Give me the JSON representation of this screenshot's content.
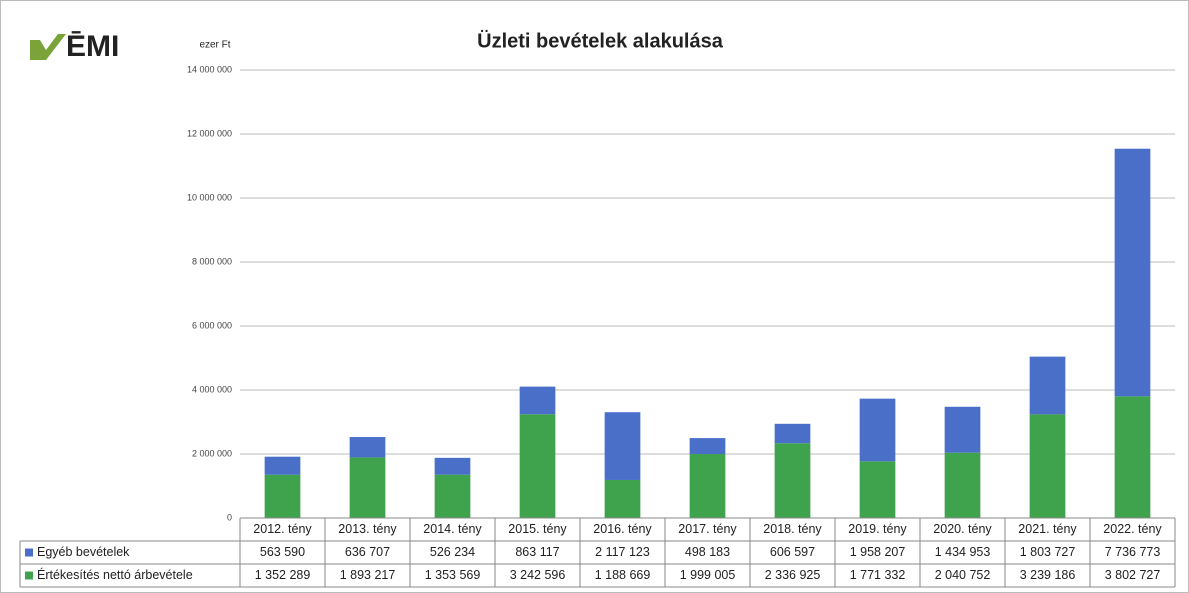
{
  "logo": "ĒMI",
  "chart_data": {
    "type": "stacked_bar",
    "title": "Üzleti bevételek alakulása",
    "y_label": "ezer Ft",
    "categories": [
      "2012. tény",
      "2013. tény",
      "2014. tény",
      "2015. tény",
      "2016. tény",
      "2017. tény",
      "2018. tény",
      "2019. tény",
      "2020. tény",
      "2021. tény",
      "2022. tény"
    ],
    "series": [
      {
        "name": "Egyéb bevételek",
        "color": "#4a6fc9",
        "values": [
          563590,
          636707,
          526234,
          863117,
          2117123,
          498183,
          606597,
          1958207,
          1434953,
          1803727,
          7736773
        ],
        "value_labels": [
          "563 590",
          "636 707",
          "526 234",
          "863 117",
          "2 117 123",
          "498 183",
          "606 597",
          "1 958 207",
          "1 434 953",
          "1 803 727",
          "7 736 773"
        ]
      },
      {
        "name": "Értékesítés nettó árbevétele",
        "color": "#3fa34d",
        "values": [
          1352289,
          1893217,
          1353569,
          3242596,
          1188669,
          1999005,
          2336925,
          1771332,
          2040752,
          3239186,
          3802727
        ],
        "value_labels": [
          "1 352 289",
          "1 893 217",
          "1 353 569",
          "3 242 596",
          "1 188 669",
          "1 999 005",
          "2 336 925",
          "1 771 332",
          "2 040 752",
          "3 239 186",
          "3 802 727"
        ]
      }
    ],
    "ylim": [
      0,
      14000000
    ],
    "yticks": [
      0,
      {
        "value": 2000000,
        "label": "2 000 000"
      },
      {
        "value": 4000000,
        "label": "4 000 000"
      },
      {
        "value": 6000000,
        "label": "6 000 000"
      },
      {
        "value": 8000000,
        "label": "8 000 000"
      },
      {
        "value": 10000000,
        "label": "10 000 000"
      },
      {
        "value": 12000000,
        "label": "12 000 000"
      },
      {
        "value": 14000000,
        "label": "14 000 000"
      }
    ],
    "grid": true
  }
}
